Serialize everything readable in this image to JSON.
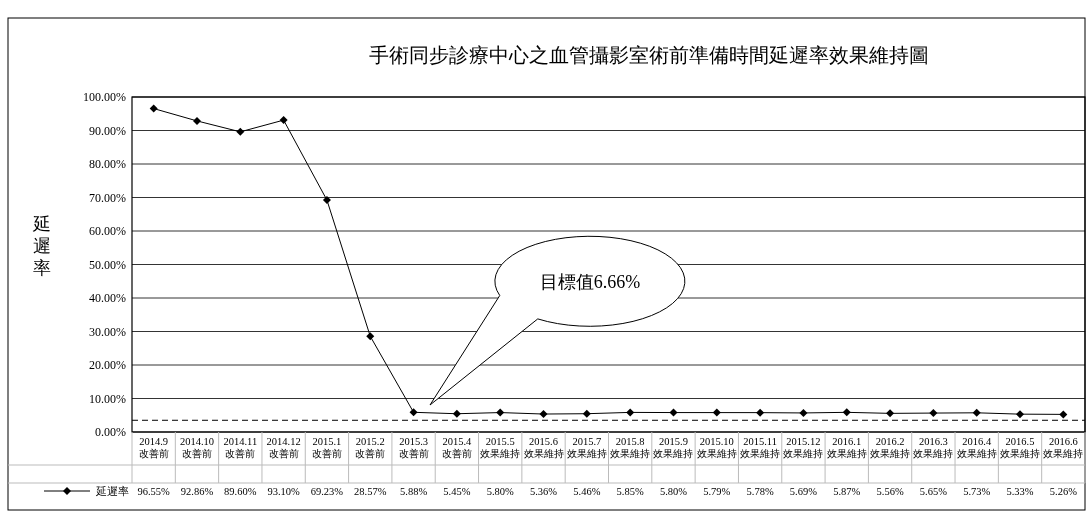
{
  "chart_data": {
    "type": "line",
    "title": "手術同步診療中心之血管攝影室術前準備時間延遲率效果維持圖",
    "ylabel": "延遲率",
    "categories": [
      "2014.9 改善前",
      "2014.10 改善前",
      "2014.11 改善前",
      "2014.12 改善前",
      "2015.1 改善前",
      "2015.2 改善前",
      "2015.3 改善前",
      "2015.4 改善前",
      "2015.5 效果維持",
      "2015.6 效果維持",
      "2015.7 效果維持",
      "2015.8 效果維持",
      "2015.9 效果維持",
      "2015.10 效果維持",
      "2015.11 效果維持",
      "2015.12 效果維持",
      "2016.1 效果維持",
      "2016.2 效果維持",
      "2016.3 效果維持",
      "2016.4 效果維持",
      "2016.5 效果維持",
      "2016.6 效果維持"
    ],
    "series": [
      {
        "name": "延遲率",
        "color": "#000000",
        "values": [
          96.55,
          92.86,
          89.6,
          93.1,
          69.23,
          28.57,
          5.88,
          5.45,
          5.8,
          5.36,
          5.46,
          5.85,
          5.8,
          5.79,
          5.78,
          5.69,
          5.87,
          5.56,
          5.65,
          5.73,
          5.33,
          5.26
        ],
        "value_labels": [
          "96.55%",
          "92.86%",
          "89.60%",
          "93.10%",
          "69.23%",
          "28.57%",
          "5.88%",
          "5.45%",
          "5.80%",
          "5.36%",
          "5.46%",
          "5.85%",
          "5.80%",
          "5.79%",
          "5.78%",
          "5.69%",
          "5.87%",
          "5.56%",
          "5.65%",
          "5.73%",
          "5.33%",
          "5.26%"
        ]
      }
    ],
    "ylim": [
      0,
      100
    ],
    "yticks": [
      {
        "value": 0,
        "label": "0.00%"
      },
      {
        "value": 10,
        "label": "10.00%"
      },
      {
        "value": 20,
        "label": "20.00%"
      },
      {
        "value": 30,
        "label": "30.00%"
      },
      {
        "value": 40,
        "label": "40.00%"
      },
      {
        "value": 50,
        "label": "50.00%"
      },
      {
        "value": 60,
        "label": "60.00%"
      },
      {
        "value": 70,
        "label": "70.00%"
      },
      {
        "value": 80,
        "label": "80.00%"
      },
      {
        "value": 90,
        "label": "90.00%"
      },
      {
        "value": 100,
        "label": "100.00%"
      }
    ],
    "grid": "y",
    "marker": "diamond",
    "line_style": "solid",
    "legend": "bottom",
    "ref_lines": [
      {
        "axis": "y",
        "value": 3.5,
        "line_style": "dashed",
        "color": "#000000"
      }
    ],
    "annotations": [
      "目標值6.66%"
    ]
  }
}
